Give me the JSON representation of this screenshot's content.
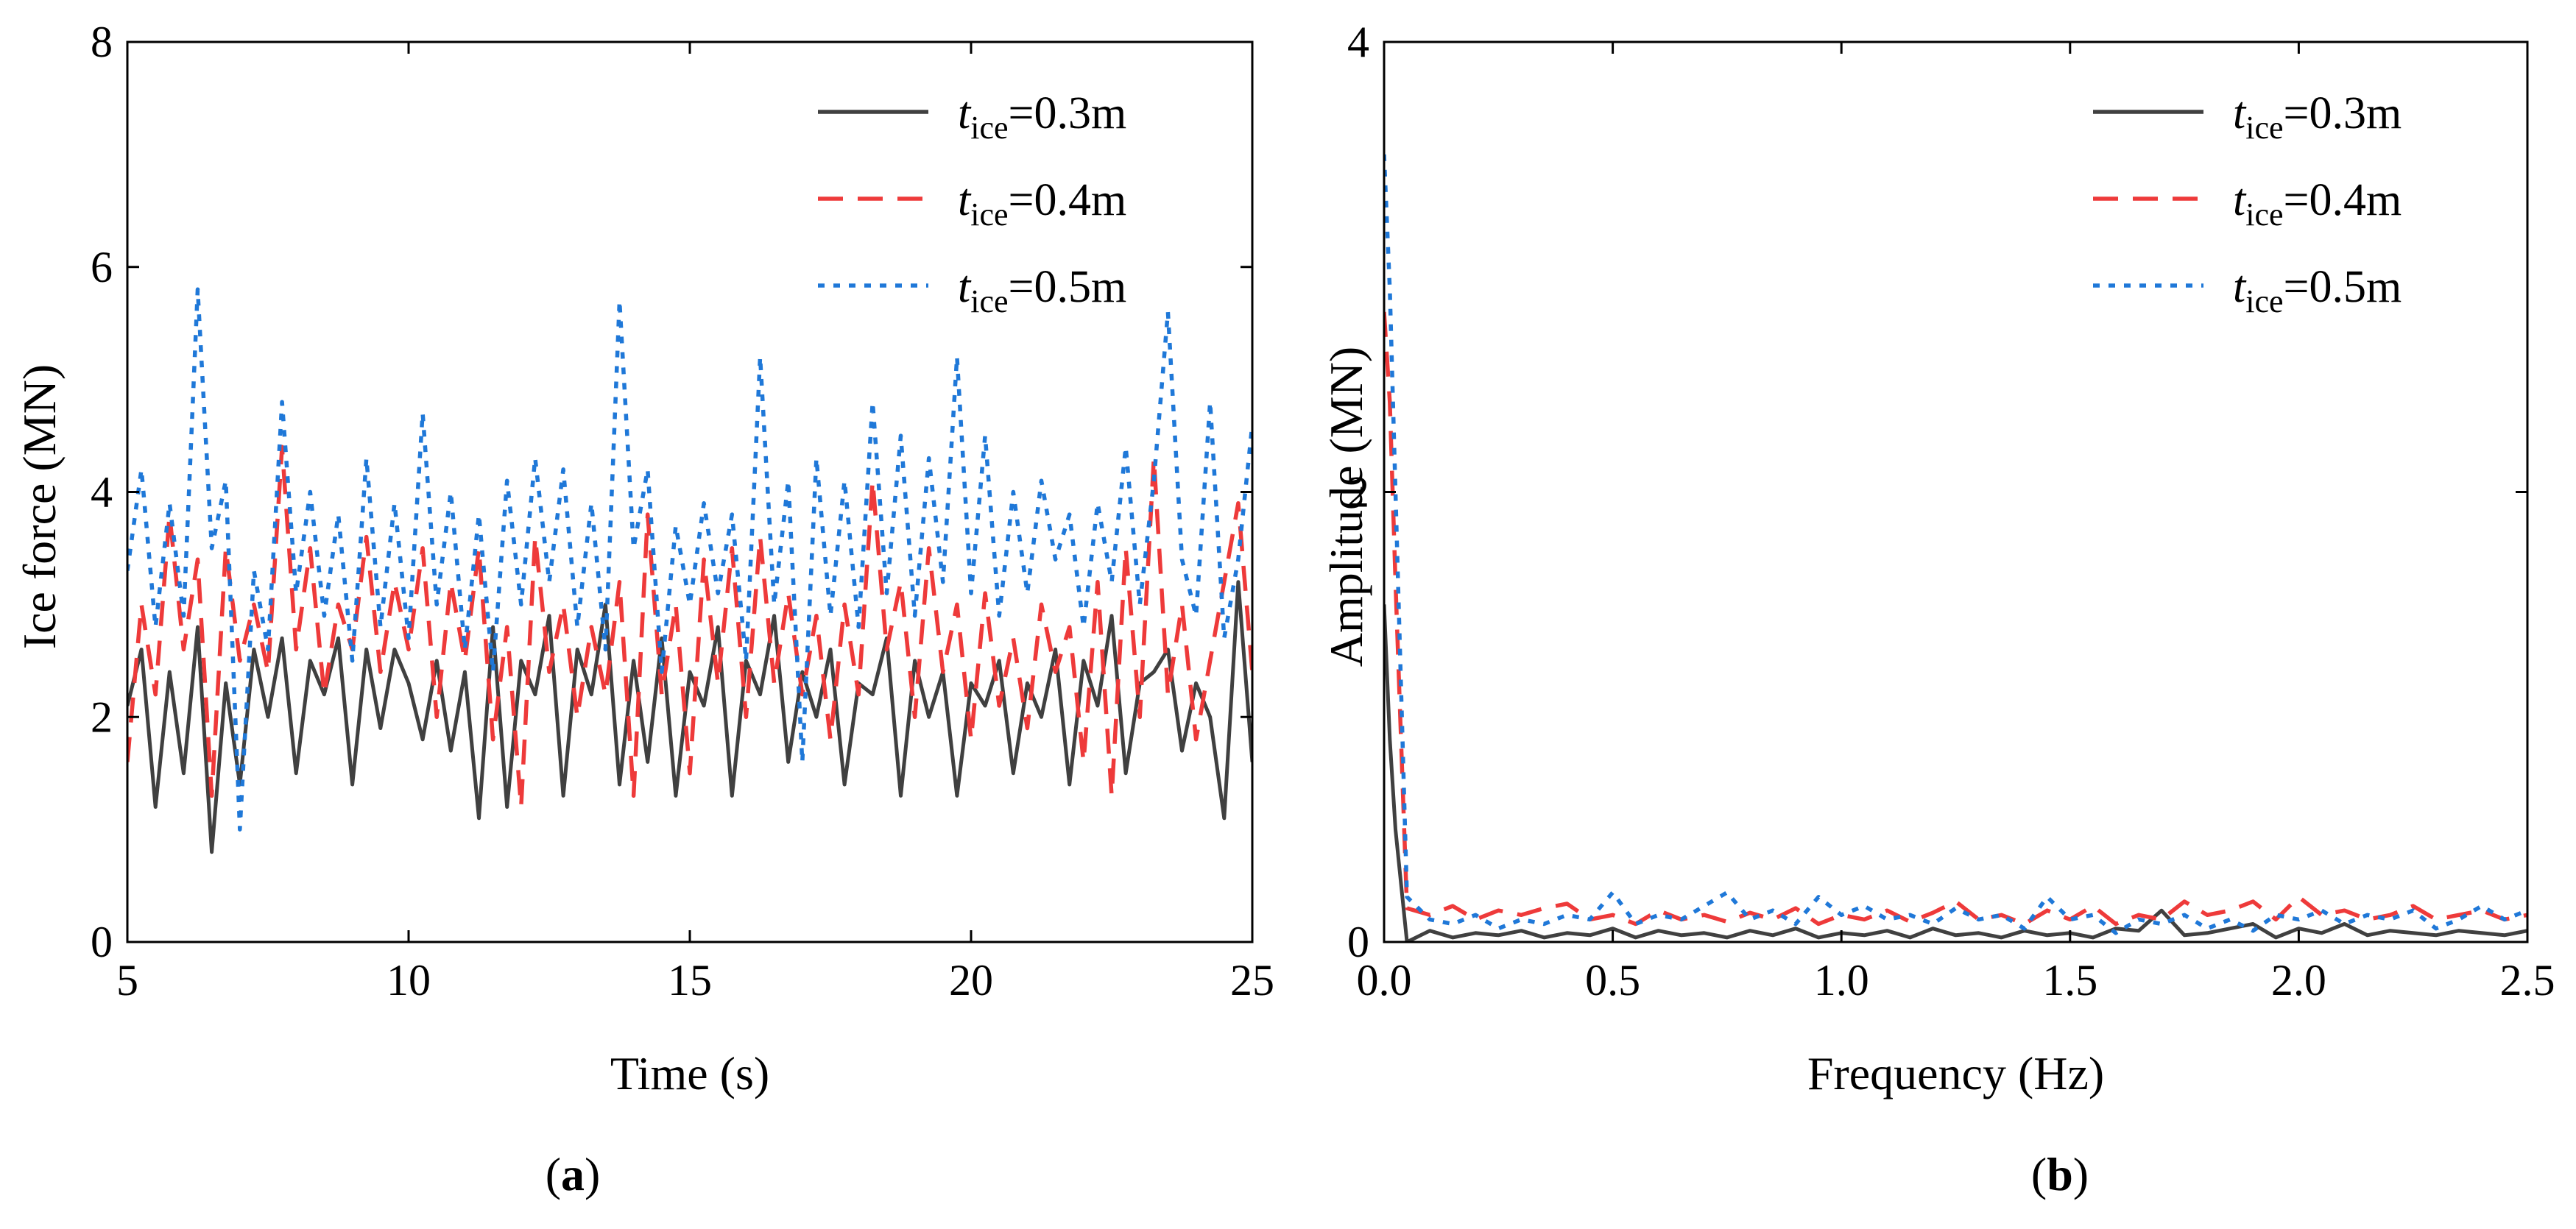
{
  "figure": {
    "panels": [
      {
        "label": "(a)"
      },
      {
        "label": "(b)"
      }
    ]
  },
  "colors": {
    "t03": "#404040",
    "t04": "#ee3a3a",
    "t05": "#1f78d8"
  },
  "chart_data": [
    {
      "type": "line",
      "panel": "(a)",
      "title": "",
      "xlabel": "Time (s)",
      "ylabel": "Ice force (MN)",
      "xlim": [
        5,
        25
      ],
      "ylim": [
        0,
        8
      ],
      "xticks": [
        5,
        10,
        15,
        20,
        25
      ],
      "yticks": [
        0,
        2,
        4,
        6,
        8
      ],
      "grid": false,
      "legend_position": "top-right",
      "x": [
        5.0,
        5.25,
        5.5,
        5.75,
        6.0,
        6.25,
        6.5,
        6.75,
        7.0,
        7.25,
        7.5,
        7.75,
        8.0,
        8.25,
        8.5,
        8.75,
        9.0,
        9.25,
        9.5,
        9.75,
        10.0,
        10.25,
        10.5,
        10.75,
        11.0,
        11.25,
        11.5,
        11.75,
        12.0,
        12.25,
        12.5,
        12.75,
        13.0,
        13.25,
        13.5,
        13.75,
        14.0,
        14.25,
        14.5,
        14.75,
        15.0,
        15.25,
        15.5,
        15.75,
        16.0,
        16.25,
        16.5,
        16.75,
        17.0,
        17.25,
        17.5,
        17.75,
        18.0,
        18.25,
        18.5,
        18.75,
        19.0,
        19.25,
        19.5,
        19.75,
        20.0,
        20.25,
        20.5,
        20.75,
        21.0,
        21.25,
        21.5,
        21.75,
        22.0,
        22.25,
        22.5,
        22.75,
        23.0,
        23.25,
        23.5,
        23.75,
        24.0,
        24.25,
        24.5,
        24.75,
        25.0
      ],
      "series": [
        {
          "name": "t_ice=0.3m",
          "legend_main": "t",
          "legend_sub": "ice",
          "legend_value": "=0.3m",
          "style": "solid",
          "values": [
            2.1,
            2.6,
            1.2,
            2.4,
            1.5,
            2.8,
            0.8,
            2.3,
            1.4,
            2.6,
            2.0,
            2.7,
            1.5,
            2.5,
            2.2,
            2.7,
            1.4,
            2.6,
            1.9,
            2.6,
            2.3,
            1.8,
            2.5,
            1.7,
            2.4,
            1.1,
            2.8,
            1.2,
            2.5,
            2.2,
            2.9,
            1.3,
            2.6,
            2.2,
            3.0,
            1.4,
            2.5,
            1.6,
            2.7,
            1.3,
            2.4,
            2.1,
            2.8,
            1.3,
            2.5,
            2.2,
            2.9,
            1.6,
            2.4,
            2.0,
            2.6,
            1.4,
            2.3,
            2.2,
            2.7,
            1.3,
            2.5,
            2.0,
            2.4,
            1.3,
            2.3,
            2.1,
            2.5,
            1.5,
            2.3,
            2.0,
            2.6,
            1.4,
            2.5,
            2.1,
            2.9,
            1.5,
            2.3,
            2.4,
            2.6,
            1.7,
            2.3,
            2.0,
            1.1,
            3.2,
            1.6
          ]
        },
        {
          "name": "t_ice=0.4m",
          "legend_main": "t",
          "legend_sub": "ice",
          "legend_value": "=0.4m",
          "style": "dashed",
          "values": [
            1.6,
            3.0,
            2.2,
            3.8,
            2.6,
            3.4,
            1.3,
            3.5,
            2.5,
            3.0,
            2.4,
            4.4,
            2.6,
            3.5,
            2.2,
            3.0,
            2.6,
            3.6,
            2.4,
            3.2,
            2.6,
            3.5,
            2.0,
            3.2,
            2.5,
            3.5,
            1.8,
            2.8,
            1.2,
            3.6,
            2.4,
            3.0,
            2.0,
            2.8,
            2.2,
            3.2,
            1.3,
            3.8,
            2.2,
            3.0,
            1.5,
            3.4,
            2.3,
            3.5,
            2.0,
            3.6,
            2.3,
            3.1,
            2.2,
            2.9,
            1.8,
            3.0,
            2.2,
            4.1,
            2.6,
            3.2,
            2.0,
            3.5,
            2.4,
            3.0,
            1.8,
            3.1,
            2.1,
            2.7,
            1.9,
            3.0,
            2.4,
            2.8,
            1.6,
            3.2,
            1.3,
            3.5,
            2.0,
            4.3,
            2.2,
            3.0,
            1.8,
            2.5,
            3.2,
            3.9,
            2.4
          ]
        },
        {
          "name": "t_ice=0.5m",
          "legend_main": "t",
          "legend_sub": "ice",
          "legend_value": "=0.5m",
          "style": "dotted",
          "values": [
            3.3,
            4.2,
            2.8,
            3.9,
            2.9,
            5.8,
            3.5,
            4.1,
            1.0,
            3.3,
            2.6,
            4.8,
            3.1,
            4.0,
            2.9,
            3.8,
            2.5,
            4.3,
            2.8,
            3.9,
            2.7,
            4.7,
            3.0,
            4.0,
            2.6,
            3.8,
            2.4,
            4.1,
            3.0,
            4.3,
            3.2,
            4.2,
            2.8,
            3.9,
            2.6,
            5.7,
            3.5,
            4.2,
            2.4,
            3.7,
            3.0,
            3.9,
            3.1,
            3.8,
            2.5,
            5.2,
            3.0,
            4.1,
            1.6,
            4.3,
            2.9,
            4.1,
            2.8,
            4.8,
            3.1,
            4.5,
            2.9,
            4.3,
            3.2,
            5.2,
            3.1,
            4.5,
            2.9,
            4.0,
            3.1,
            4.1,
            3.4,
            3.8,
            2.8,
            3.9,
            3.2,
            4.4,
            3.0,
            4.1,
            5.6,
            3.4,
            2.9,
            4.8,
            2.7,
            3.4,
            4.6
          ]
        }
      ]
    },
    {
      "type": "line",
      "panel": "(b)",
      "title": "",
      "xlabel": "Frequency (Hz)",
      "ylabel": "Amplitude (MN)",
      "xlim": [
        0,
        2.5
      ],
      "ylim": [
        0,
        4
      ],
      "xticks": [
        "0.0",
        "0.5",
        "1.0",
        "1.5",
        "2.0",
        "2.5"
      ],
      "yticks": [
        0,
        2,
        4
      ],
      "grid": false,
      "legend_position": "top-right",
      "x": [
        0.0,
        0.0125,
        0.025,
        0.05,
        0.1,
        0.15,
        0.2,
        0.25,
        0.3,
        0.35,
        0.4,
        0.45,
        0.5,
        0.55,
        0.6,
        0.65,
        0.7,
        0.75,
        0.8,
        0.85,
        0.9,
        0.95,
        1.0,
        1.05,
        1.1,
        1.15,
        1.2,
        1.25,
        1.3,
        1.35,
        1.4,
        1.45,
        1.5,
        1.55,
        1.6,
        1.65,
        1.7,
        1.75,
        1.8,
        1.85,
        1.9,
        1.95,
        2.0,
        2.05,
        2.1,
        2.15,
        2.2,
        2.25,
        2.3,
        2.35,
        2.4,
        2.45,
        2.5
      ],
      "series": [
        {
          "name": "t_ice=0.3m",
          "style": "solid",
          "values": [
            1.5,
            0.9,
            0.5,
            0.0,
            0.05,
            0.02,
            0.04,
            0.03,
            0.05,
            0.02,
            0.04,
            0.03,
            0.06,
            0.02,
            0.05,
            0.03,
            0.04,
            0.02,
            0.05,
            0.03,
            0.06,
            0.02,
            0.04,
            0.03,
            0.05,
            0.02,
            0.06,
            0.03,
            0.04,
            0.02,
            0.05,
            0.03,
            0.04,
            0.02,
            0.06,
            0.05,
            0.14,
            0.03,
            0.04,
            0.06,
            0.08,
            0.02,
            0.06,
            0.04,
            0.08,
            0.03,
            0.05,
            0.04,
            0.03,
            0.05,
            0.04,
            0.03,
            0.05
          ]
        },
        {
          "name": "t_ice=0.4m",
          "style": "dashed",
          "values": [
            2.8,
            2.4,
            1.6,
            0.15,
            0.12,
            0.16,
            0.1,
            0.14,
            0.12,
            0.15,
            0.17,
            0.1,
            0.12,
            0.08,
            0.14,
            0.1,
            0.12,
            0.09,
            0.13,
            0.1,
            0.15,
            0.08,
            0.12,
            0.1,
            0.14,
            0.09,
            0.13,
            0.18,
            0.1,
            0.12,
            0.08,
            0.14,
            0.1,
            0.16,
            0.08,
            0.12,
            0.1,
            0.18,
            0.12,
            0.14,
            0.18,
            0.1,
            0.2,
            0.12,
            0.14,
            0.1,
            0.12,
            0.16,
            0.1,
            0.12,
            0.14,
            0.1,
            0.12
          ]
        },
        {
          "name": "t_ice=0.5m",
          "style": "dotted",
          "values": [
            3.5,
            2.9,
            2.0,
            0.2,
            0.1,
            0.08,
            0.12,
            0.06,
            0.1,
            0.08,
            0.12,
            0.1,
            0.22,
            0.08,
            0.12,
            0.1,
            0.16,
            0.22,
            0.1,
            0.14,
            0.08,
            0.2,
            0.12,
            0.16,
            0.1,
            0.12,
            0.08,
            0.15,
            0.1,
            0.12,
            0.06,
            0.2,
            0.1,
            0.12,
            0.04,
            0.1,
            0.08,
            0.12,
            0.06,
            0.1,
            0.05,
            0.12,
            0.1,
            0.14,
            0.08,
            0.12,
            0.1,
            0.14,
            0.06,
            0.1,
            0.16,
            0.1,
            0.14
          ]
        }
      ]
    }
  ]
}
